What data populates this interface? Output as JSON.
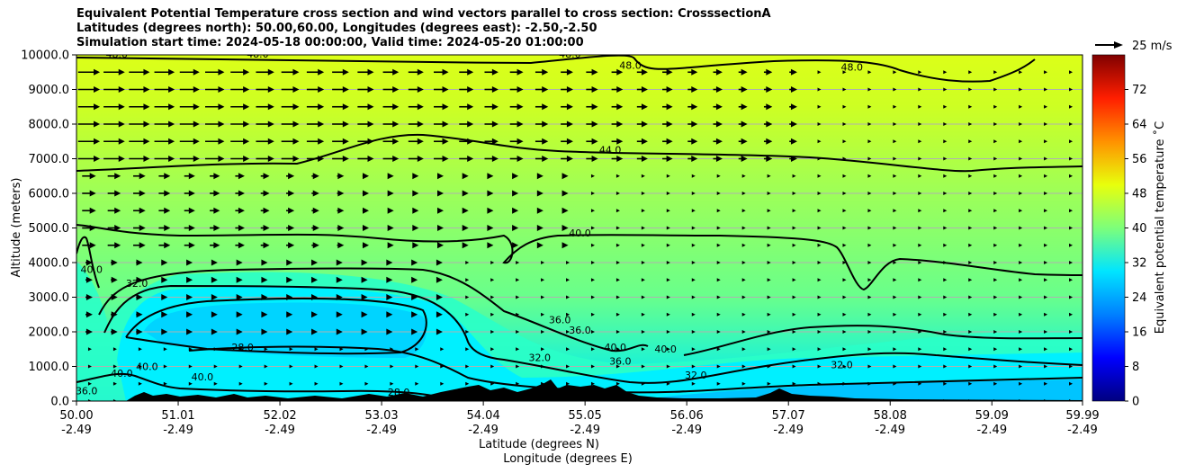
{
  "title_lines": [
    "Equivalent Potential Temperature cross section and wind vectors parallel to cross section: CrosssectionA",
    "Latitudes (degrees north): 50.00,60.00, Longitudes (degrees east): -2.50,-2.50",
    "Simulation start time: 2024-05-18 00:00:00, Valid time: 2024-05-20 01:00:00"
  ],
  "chart_data": {
    "type": "contour",
    "title": "Equivalent Potential Temperature cross section and wind vectors parallel to cross section: CrosssectionA",
    "ylabel": "Altitude (meters)",
    "xlabel_lines": [
      "Latitude (degrees N)",
      "Longitude (degrees E)"
    ],
    "ylim": [
      0,
      10000
    ],
    "xlim": [
      50.0,
      59.99
    ],
    "y_ticks": [
      "0.0",
      "1000.0",
      "2000.0",
      "3000.0",
      "4000.0",
      "5000.0",
      "6000.0",
      "7000.0",
      "8000.0",
      "9000.0",
      "10000.0"
    ],
    "x_ticks_lat": [
      "50.00",
      "51.01",
      "52.02",
      "53.03",
      "54.04",
      "55.05",
      "56.06",
      "57.07",
      "58.08",
      "59.09",
      "59.99"
    ],
    "x_ticks_lon": [
      "-2.49",
      "-2.49",
      "-2.49",
      "-2.49",
      "-2.49",
      "-2.49",
      "-2.49",
      "-2.49",
      "-2.49",
      "-2.49",
      "-2.49"
    ],
    "colorbar": {
      "label": "Equivalent potential temperature ˚C",
      "range": [
        0,
        80
      ],
      "ticks": [
        "0",
        "8",
        "16",
        "24",
        "32",
        "40",
        "48",
        "56",
        "64",
        "72"
      ]
    },
    "quiver_key": {
      "label": "25 m/s",
      "speed_ms": 25
    },
    "contour_levels": [
      28,
      32,
      36,
      40,
      44,
      48
    ],
    "contour_labels": [
      {
        "text": "48.0",
        "lat": 50.4,
        "alt": 9920
      },
      {
        "text": "48.0",
        "lat": 51.8,
        "alt": 9920
      },
      {
        "text": "48.0",
        "lat": 54.9,
        "alt": 9920
      },
      {
        "text": "48.0",
        "lat": 55.5,
        "alt": 9600
      },
      {
        "text": "48.0",
        "lat": 57.7,
        "alt": 9550
      },
      {
        "text": "44.0",
        "lat": 55.3,
        "alt": 7150
      },
      {
        "text": "40.0",
        "lat": 55.0,
        "alt": 4750
      },
      {
        "text": "40.0",
        "lat": 50.15,
        "alt": 3700
      },
      {
        "text": "32.0",
        "lat": 50.6,
        "alt": 3300
      },
      {
        "text": "36.0",
        "lat": 54.8,
        "alt": 2250
      },
      {
        "text": "36.0",
        "lat": 55.0,
        "alt": 1950
      },
      {
        "text": "40.0",
        "lat": 55.35,
        "alt": 1450
      },
      {
        "text": "40.0",
        "lat": 55.85,
        "alt": 1400
      },
      {
        "text": "36.0",
        "lat": 55.4,
        "alt": 1050
      },
      {
        "text": "28.0",
        "lat": 51.65,
        "alt": 1450
      },
      {
        "text": "32.0",
        "lat": 54.6,
        "alt": 1150
      },
      {
        "text": "32.0",
        "lat": 56.15,
        "alt": 650
      },
      {
        "text": "32.0",
        "lat": 57.6,
        "alt": 950
      },
      {
        "text": "40.0",
        "lat": 50.45,
        "alt": 700
      },
      {
        "text": "40.0",
        "lat": 50.7,
        "alt": 900
      },
      {
        "text": "40.0",
        "lat": 51.25,
        "alt": 600
      },
      {
        "text": "36.0",
        "lat": 50.1,
        "alt": 200
      },
      {
        "text": "28.0",
        "lat": 53.2,
        "alt": 150
      }
    ]
  },
  "colors": {
    "colormap": [
      "#000080",
      "#0000ff",
      "#0080ff",
      "#00e5ff",
      "#7dff7a",
      "#e8ff0c",
      "#ff9100",
      "#ff1e00",
      "#800000"
    ],
    "contour_line": "#000000",
    "terrain": "#000000",
    "grid": "#b0b0b0"
  }
}
